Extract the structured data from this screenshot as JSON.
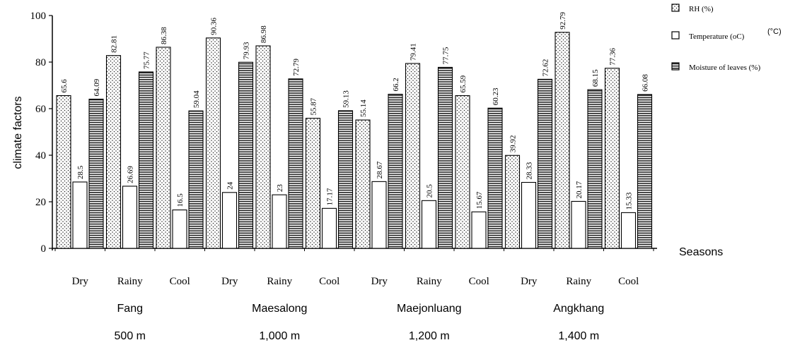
{
  "chart_data": {
    "type": "bar",
    "ylabel": "climate factors",
    "xlabel": "Seasons",
    "ylim": [
      0,
      100
    ],
    "yticks": [
      "0",
      "20",
      "40",
      "60",
      "80",
      "100"
    ],
    "grid": false,
    "legend_position": "top-right",
    "categories": [
      "Dry",
      "Rainy",
      "Cool",
      "Dry",
      "Rainy",
      "Cool",
      "Dry",
      "Rainy",
      "Cool",
      "Dry",
      "Rainy",
      "Cool"
    ],
    "groups": [
      {
        "name": "Fang",
        "elevation": "500 m"
      },
      {
        "name": "Maesalong",
        "elevation": "1,000 m"
      },
      {
        "name": "Maejonluang",
        "elevation": "1,200 m"
      },
      {
        "name": "Angkhang",
        "elevation": "1,400 m"
      }
    ],
    "series": [
      {
        "name": "RH (%)",
        "pattern": "dots",
        "values": [
          65.6,
          82.81,
          86.38,
          90.36,
          86.98,
          55.87,
          55.14,
          79.41,
          65.59,
          39.92,
          92.79,
          77.36
        ]
      },
      {
        "name": "Temperature (oC)",
        "legend_suffix": "(°C)",
        "pattern": "plain",
        "values": [
          28.5,
          26.69,
          16.5,
          24,
          23,
          17.17,
          28.67,
          20.5,
          15.67,
          28.33,
          20.17,
          15.33
        ]
      },
      {
        "name": "Moisture of leaves (%)",
        "pattern": "hstripes",
        "values": [
          64.09,
          75.77,
          59.04,
          79.93,
          72.79,
          59.13,
          66.2,
          77.75,
          60.23,
          72.62,
          68.15,
          66.08
        ]
      }
    ]
  }
}
